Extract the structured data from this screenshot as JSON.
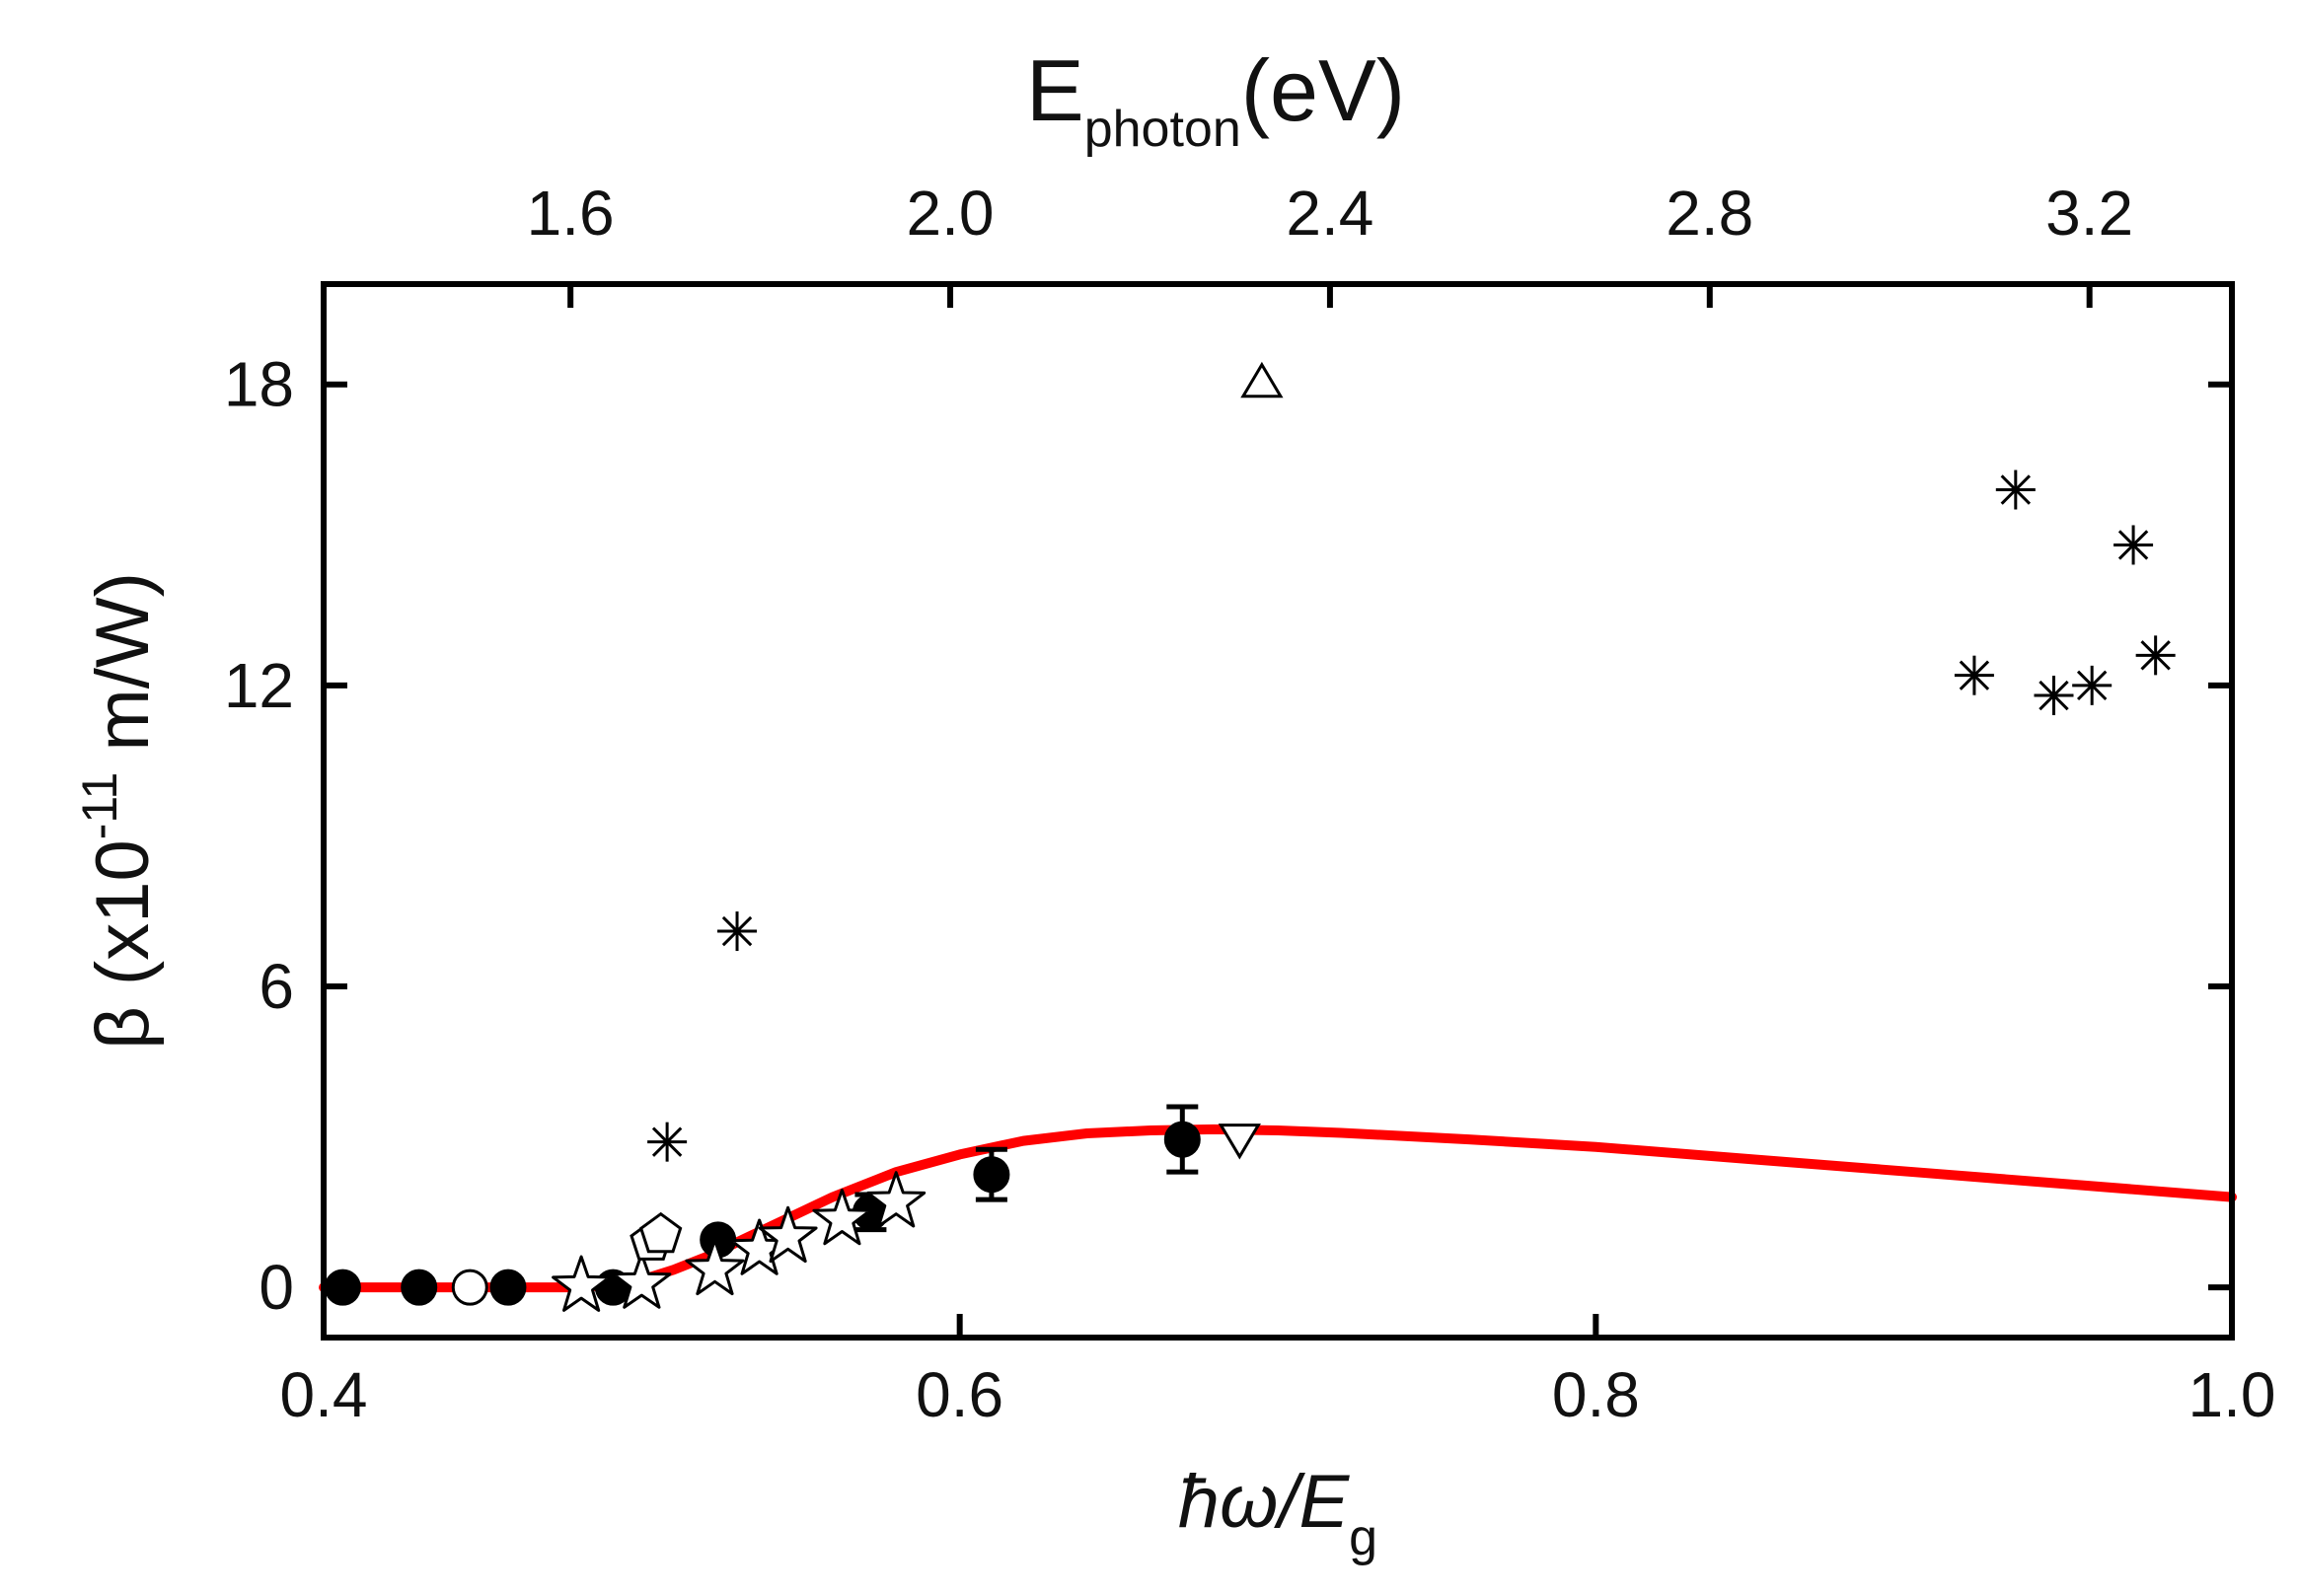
{
  "chart_data": {
    "type": "scatter",
    "title": "",
    "xlabel": {
      "main": "ħω/E",
      "sub": "g"
    },
    "ylabel": {
      "main": "β (x10",
      "sup": "-11",
      "tail": " m/W)"
    },
    "top_xlabel": {
      "main": "E",
      "sub": "photon",
      "tail": "(eV)"
    },
    "xlim": [
      0.4,
      1.0
    ],
    "ylim": [
      -1,
      20
    ],
    "x_ticks": [
      0.4,
      0.6,
      0.8,
      1.0
    ],
    "x_tick_labels": [
      "0.4",
      "0.6",
      "0.8",
      "1.0"
    ],
    "y_ticks": [
      0,
      6,
      12,
      18
    ],
    "y_tick_labels": [
      "0",
      "6",
      "12",
      "18"
    ],
    "top_ticks": {
      "values": [
        1.6,
        2.0,
        2.4,
        2.8,
        3.2
      ],
      "labels": [
        "1.6",
        "2.0",
        "2.4",
        "2.8",
        "3.2"
      ],
      "ev_per_unit_x": 3.35
    },
    "fit_curve": {
      "name": "theory",
      "color": "#ff0000",
      "x": [
        0.4,
        0.46,
        0.48,
        0.49,
        0.5,
        0.51,
        0.52,
        0.53,
        0.54,
        0.55,
        0.56,
        0.57,
        0.58,
        0.6,
        0.62,
        0.64,
        0.66,
        0.68,
        0.7,
        0.72,
        0.76,
        0.8,
        0.85,
        0.9,
        0.95,
        1.0
      ],
      "y": [
        0,
        0,
        0,
        0.05,
        0.15,
        0.35,
        0.6,
        0.9,
        1.2,
        1.5,
        1.8,
        2.05,
        2.3,
        2.65,
        2.92,
        3.07,
        3.13,
        3.15,
        3.13,
        3.08,
        2.95,
        2.8,
        2.55,
        2.3,
        2.05,
        1.8
      ]
    },
    "series": [
      {
        "name": "filled-circles",
        "marker": "circle",
        "filled": true,
        "x": [
          0.406,
          0.43,
          0.458,
          0.491,
          0.524,
          0.572,
          0.61,
          0.67
        ],
        "y": [
          0,
          0,
          0,
          0,
          0.95,
          1.5,
          2.25,
          2.95
        ],
        "yerr": [
          0,
          0,
          0,
          0,
          0,
          0.35,
          0.5,
          0.65
        ]
      },
      {
        "name": "open-circle",
        "marker": "circle",
        "filled": false,
        "x": [
          0.446
        ],
        "y": [
          0
        ]
      },
      {
        "name": "stars",
        "marker": "star",
        "filled": false,
        "x": [
          0.481,
          0.5,
          0.523,
          0.537,
          0.546,
          0.563,
          0.58
        ],
        "y": [
          0.02,
          0.08,
          0.35,
          0.75,
          1.0,
          1.35,
          1.7
        ]
      },
      {
        "name": "pentagons",
        "marker": "pentagon",
        "filled": false,
        "x": [
          0.503,
          0.506
        ],
        "y": [
          0.9,
          1.05
        ]
      },
      {
        "name": "asterisks",
        "marker": "asterisk",
        "filled": false,
        "x": [
          0.508,
          0.53,
          0.919,
          0.932,
          0.944,
          0.956,
          0.969,
          0.976
        ],
        "y": [
          2.9,
          7.1,
          12.2,
          15.9,
          11.8,
          12.0,
          14.8,
          12.6
        ]
      },
      {
        "name": "triangle-up",
        "marker": "triangle-up",
        "filled": false,
        "x": [
          0.695
        ],
        "y": [
          18.0
        ]
      },
      {
        "name": "triangle-down",
        "marker": "triangle-down",
        "filled": false,
        "x": [
          0.688
        ],
        "y": [
          3.0
        ]
      }
    ]
  }
}
